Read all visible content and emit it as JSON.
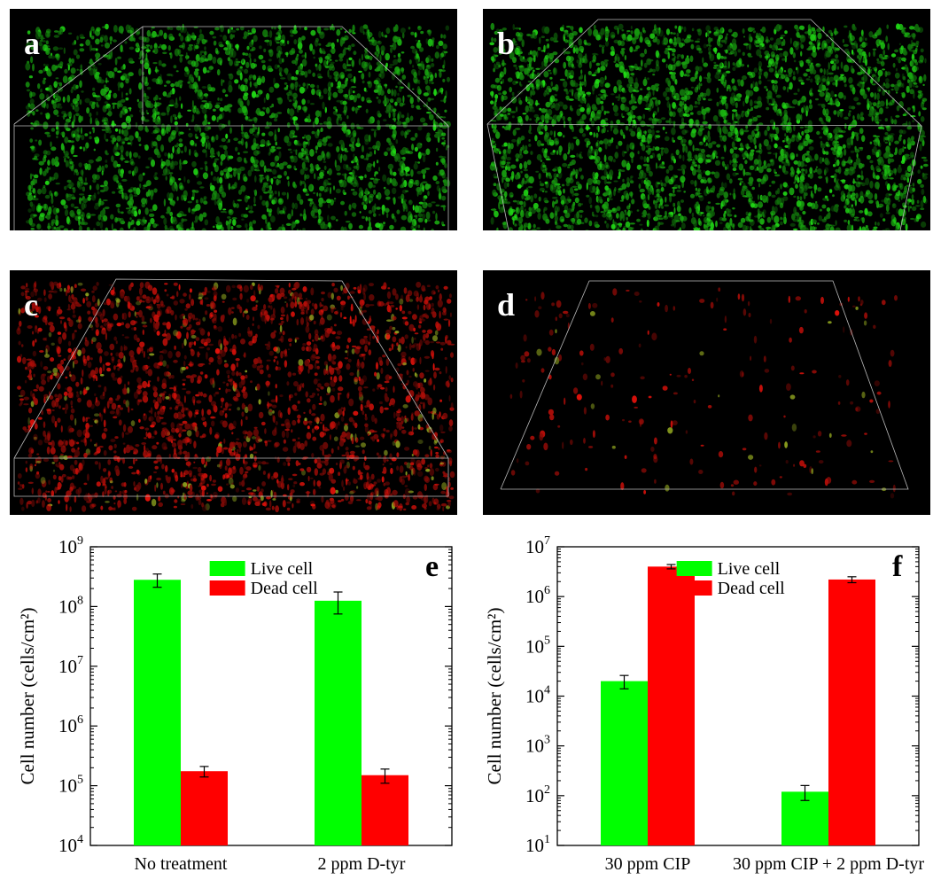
{
  "panels": {
    "a": {
      "label": "a",
      "stain": "green"
    },
    "b": {
      "label": "b",
      "stain": "green"
    },
    "c": {
      "label": "c",
      "stain": "red"
    },
    "d": {
      "label": "d",
      "stain": "red"
    }
  },
  "chart_data": [
    {
      "panel_label": "e",
      "type": "bar",
      "log_scale": true,
      "ylabel": "Cell number (cells/cm²)",
      "ylim_exponents": [
        4,
        9
      ],
      "categories": [
        "No treatment",
        "2 ppm D-tyr"
      ],
      "series": [
        {
          "name": "Live cell",
          "color": "#00ff00",
          "values": [
            280000000,
            125000000
          ],
          "errors": [
            70000000,
            50000000
          ]
        },
        {
          "name": "Dead cell",
          "color": "#ff0000",
          "values": [
            175000,
            150000
          ],
          "errors": [
            35000,
            40000
          ]
        }
      ],
      "legend": "top-center"
    },
    {
      "panel_label": "f",
      "type": "bar",
      "log_scale": true,
      "ylabel": "Cell number (cells/cm²)",
      "ylim_exponents": [
        1,
        7
      ],
      "categories": [
        "30 ppm CIP",
        "30 ppm CIP + 2 ppm D-tyr"
      ],
      "series": [
        {
          "name": "Live cell",
          "color": "#00ff00",
          "values": [
            20000,
            120
          ],
          "errors": [
            6000,
            40
          ]
        },
        {
          "name": "Dead cell",
          "color": "#ff0000",
          "values": [
            4000000,
            2200000
          ],
          "errors": [
            400000,
            300000
          ]
        }
      ],
      "legend": "top-center"
    }
  ]
}
